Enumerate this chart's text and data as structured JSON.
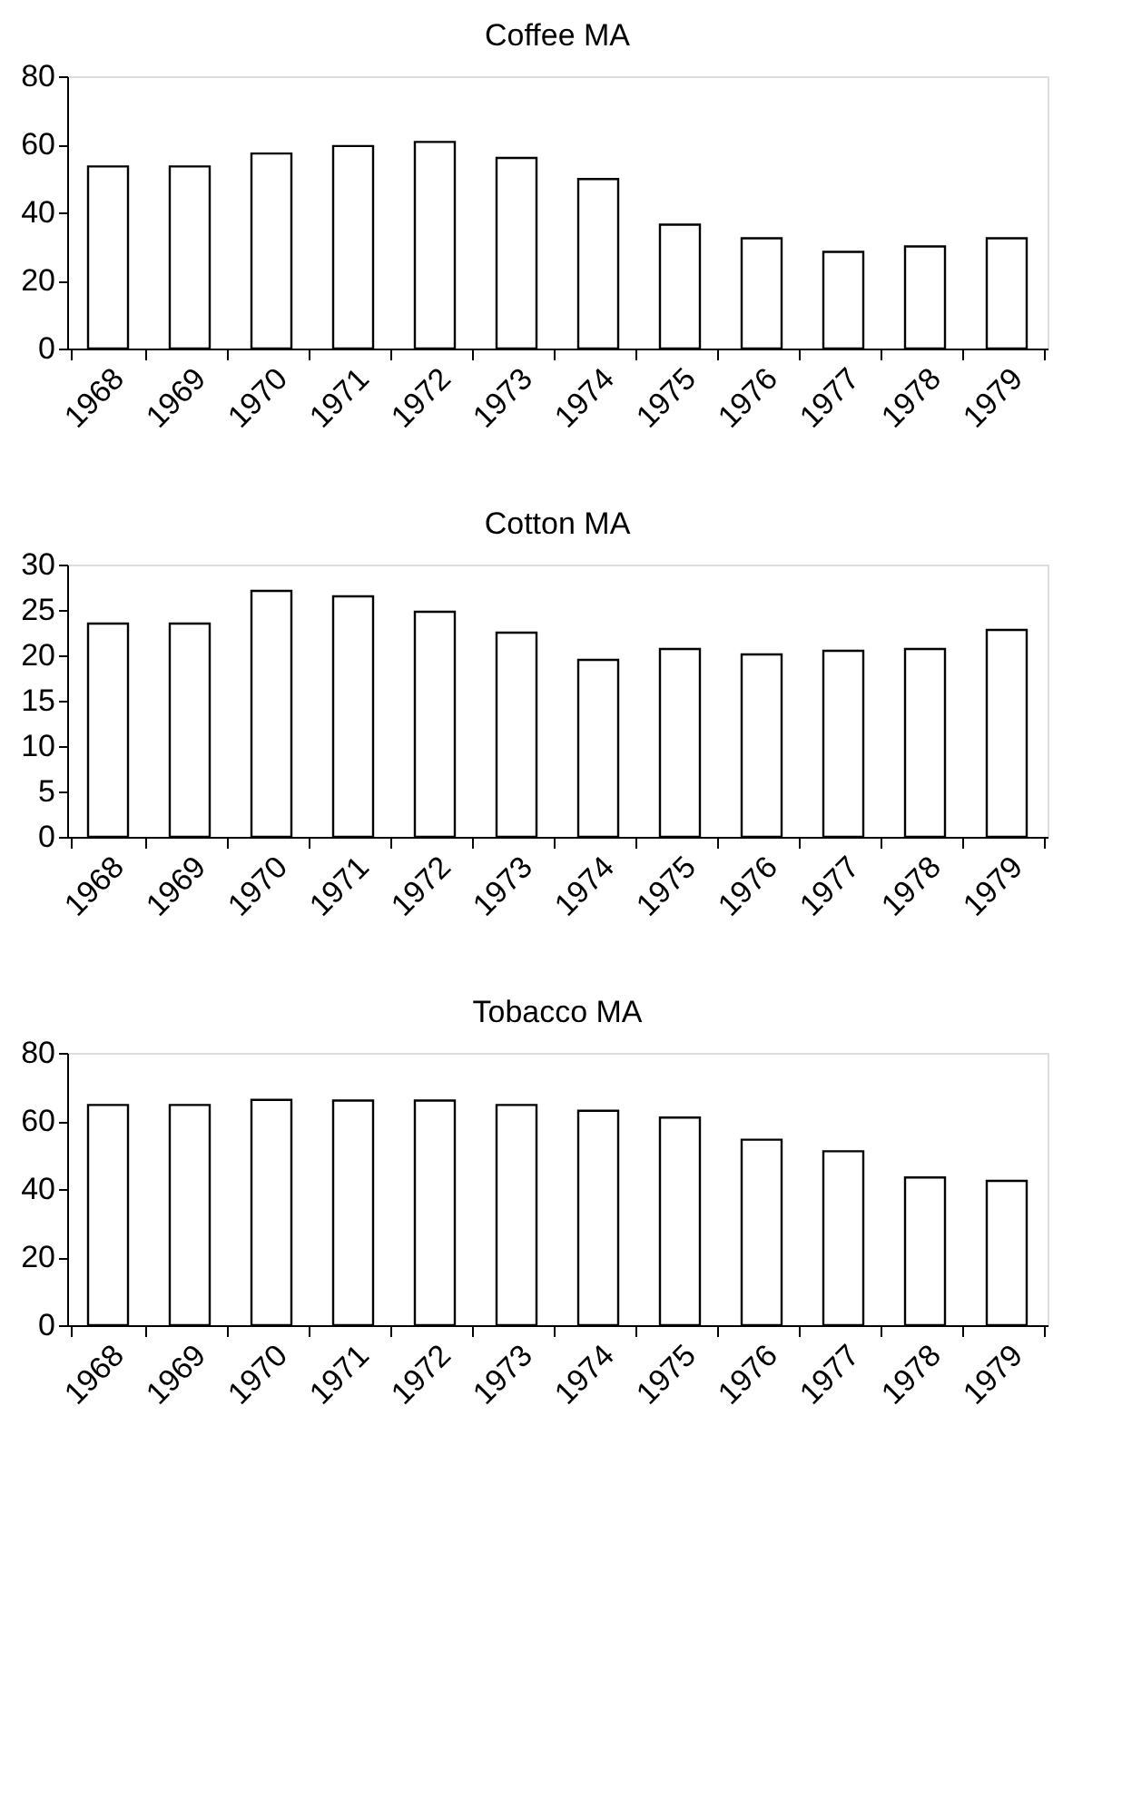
{
  "chart_data": [
    {
      "type": "bar",
      "title": "Coffee MA",
      "categories": [
        "1968",
        "1969",
        "1970",
        "1971",
        "1972",
        "1973",
        "1974",
        "1975",
        "1976",
        "1977",
        "1978",
        "1979"
      ],
      "values": [
        53.5,
        53.5,
        57.3,
        59.5,
        60.7,
        56,
        49.8,
        36.4,
        32.4,
        28.4,
        30,
        32.4
      ],
      "color": "#ffffff",
      "ylim": [
        0,
        80
      ],
      "yticks": [
        0,
        20,
        40,
        60,
        80
      ],
      "grid": false
    },
    {
      "type": "bar",
      "title": "Cotton MA",
      "categories": [
        "1968",
        "1969",
        "1970",
        "1971",
        "1972",
        "1973",
        "1974",
        "1975",
        "1976",
        "1977",
        "1978",
        "1979"
      ],
      "values": [
        23.5,
        23.5,
        27.1,
        26.5,
        24.8,
        22.5,
        19.5,
        20.7,
        20.1,
        20.5,
        20.7,
        22.8
      ],
      "color": "#ffffff",
      "ylim": [
        0,
        30
      ],
      "yticks": [
        0,
        5,
        10,
        15,
        20,
        25,
        30
      ],
      "grid": false
    },
    {
      "type": "bar",
      "title": "Tobacco MA",
      "categories": [
        "1968",
        "1969",
        "1970",
        "1971",
        "1972",
        "1973",
        "1974",
        "1975",
        "1976",
        "1977",
        "1978",
        "1979"
      ],
      "values": [
        64.7,
        64.7,
        66.2,
        66,
        66,
        64.7,
        63,
        61,
        54.5,
        51.1,
        43.4,
        42.4
      ],
      "color": "#ffffff",
      "ylim": [
        0,
        80
      ],
      "yticks": [
        0,
        20,
        40,
        60,
        80
      ],
      "grid": false
    }
  ]
}
